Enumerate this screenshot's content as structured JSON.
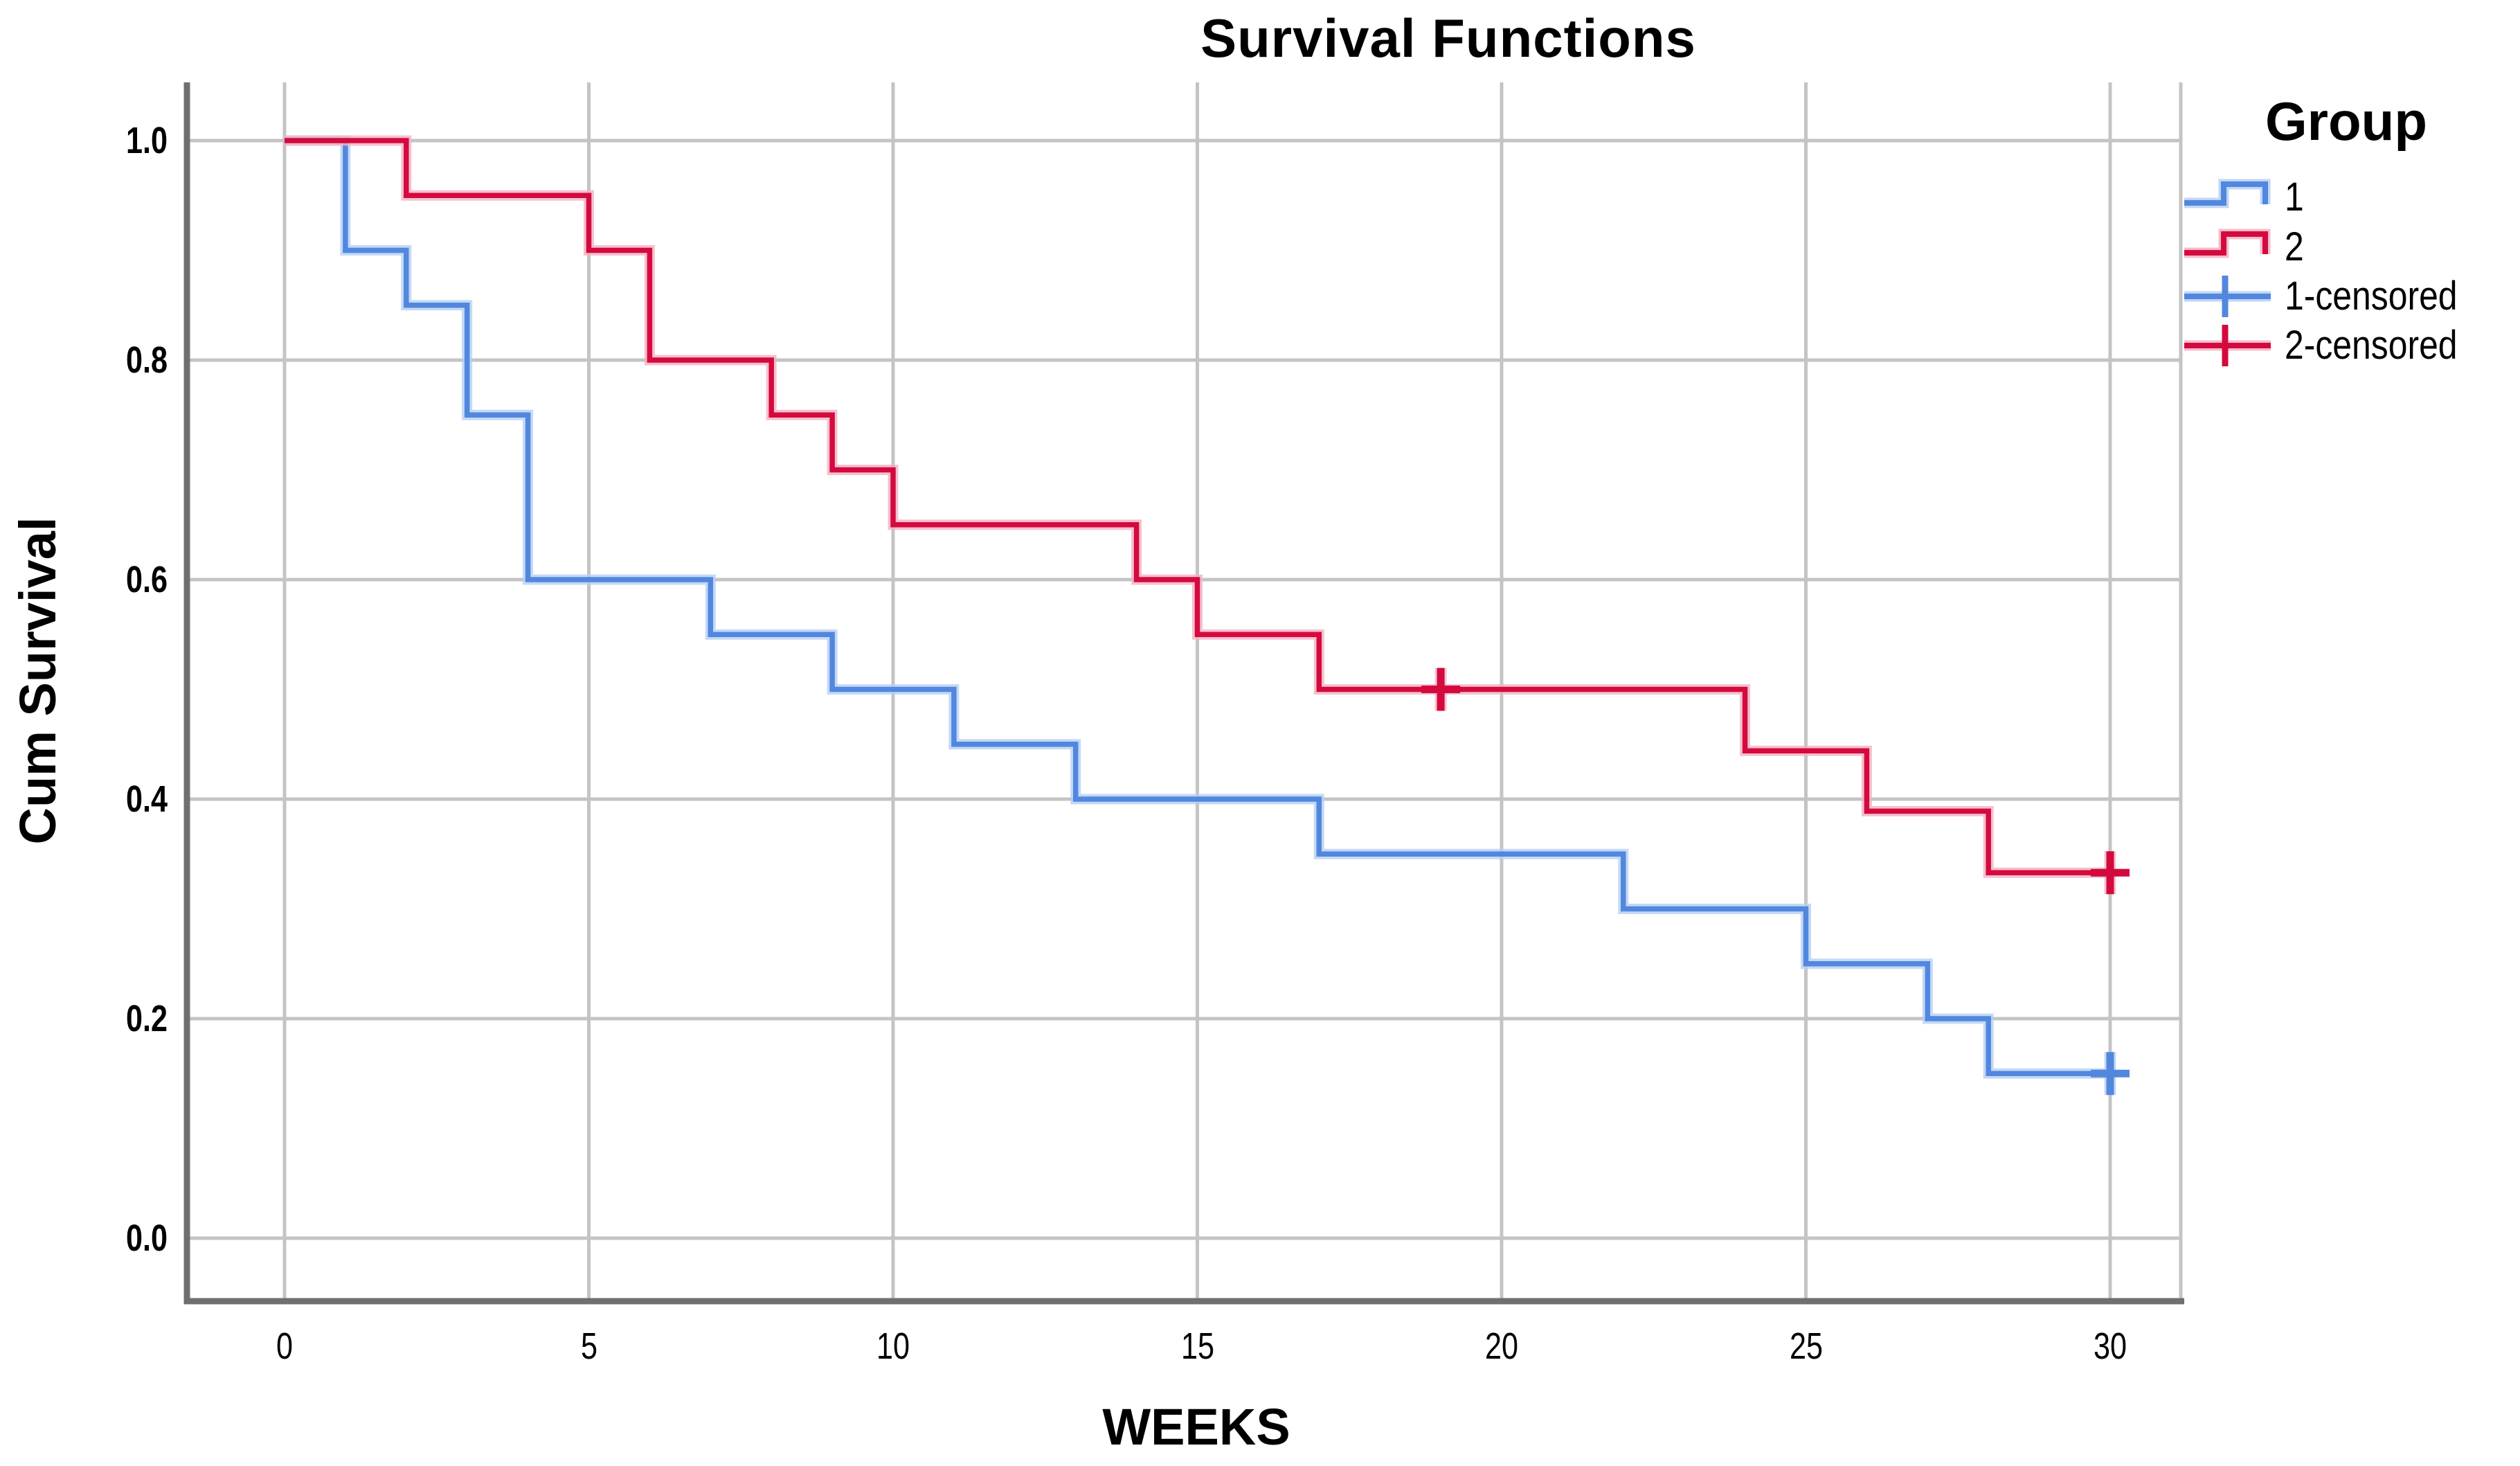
{
  "title": "Survival Functions",
  "axes": {
    "x": {
      "title": "WEEKS",
      "tick_labels": [
        "0",
        "5",
        "10",
        "15",
        "20",
        "25",
        "30"
      ]
    },
    "y": {
      "title": "Cum Survival",
      "tick_labels": [
        "1.0",
        "0.8",
        "0.6",
        "0.4",
        "0.2",
        "0.0"
      ]
    }
  },
  "legend": {
    "title": "Group",
    "items": [
      {
        "label": "1",
        "symbol": "step-line",
        "color_key": "group1"
      },
      {
        "label": "2",
        "symbol": "step-line",
        "color_key": "group2"
      },
      {
        "label": "1-censored",
        "symbol": "censor-plus",
        "color_key": "group1"
      },
      {
        "label": "2-censored",
        "symbol": "censor-plus",
        "color_key": "group2"
      }
    ]
  },
  "colors": {
    "group1": "#5187DE",
    "group1_halo": "#b7cff2",
    "group2": "#D40A3E",
    "group2_halo": "#f2b1c3",
    "gridline": "#c4c4c4",
    "axis_line": "#6f6f6f",
    "frame_light": "#c4c4c4",
    "text": "#000000"
  },
  "chart_data": {
    "type": "line",
    "subtype": "kaplan-meier-step",
    "title": "Survival Functions",
    "xlabel": "WEEKS",
    "ylabel": "Cum Survival",
    "xlim": [
      0,
      30
    ],
    "ylim": [
      0.0,
      1.0
    ],
    "x_ticks": [
      0,
      5,
      10,
      15,
      20,
      25,
      30
    ],
    "y_ticks": [
      1.0,
      0.8,
      0.6,
      0.4,
      0.2,
      0.0
    ],
    "grid": true,
    "legend_position": "right",
    "series": [
      {
        "name": "1",
        "color_key": "group1",
        "steps": [
          [
            0,
            1.0
          ],
          [
            1,
            0.9
          ],
          [
            2,
            0.85
          ],
          [
            3,
            0.75
          ],
          [
            4,
            0.6
          ],
          [
            7,
            0.55
          ],
          [
            9,
            0.5
          ],
          [
            11,
            0.45
          ],
          [
            13,
            0.4
          ],
          [
            17,
            0.35
          ],
          [
            22,
            0.3
          ],
          [
            25,
            0.25
          ],
          [
            27,
            0.2
          ],
          [
            28,
            0.15
          ]
        ],
        "end_x": 30,
        "censored_points": [
          [
            30,
            0.15
          ]
        ]
      },
      {
        "name": "2",
        "color_key": "group2",
        "steps": [
          [
            0,
            1.0
          ],
          [
            2,
            0.95
          ],
          [
            5,
            0.9
          ],
          [
            6,
            0.8
          ],
          [
            8,
            0.75
          ],
          [
            9,
            0.7
          ],
          [
            10,
            0.65
          ],
          [
            14,
            0.6
          ],
          [
            15,
            0.55
          ],
          [
            17,
            0.5
          ],
          [
            24,
            0.444
          ],
          [
            26,
            0.389
          ],
          [
            28,
            0.333
          ]
        ],
        "end_x": 30,
        "censored_points": [
          [
            19,
            0.5
          ],
          [
            30,
            0.333
          ]
        ]
      }
    ]
  }
}
